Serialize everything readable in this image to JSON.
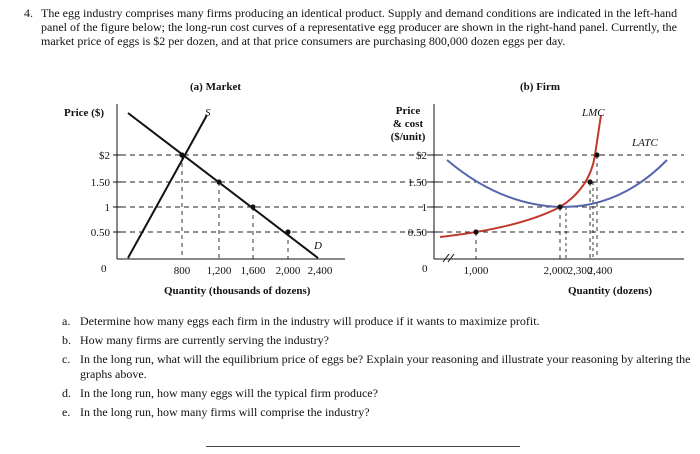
{
  "question": {
    "number": "4.",
    "text": "The egg industry comprises many firms producing an identical product. Supply and demand conditions are indicated in the left-hand panel of the figure below; the long-run cost curves of a representative egg producer are shown in the right-hand panel. Currently, the market price of eggs is $2 per dozen, and at that price consumers are purchasing 800,000 dozen eggs per day."
  },
  "chart_data": [
    {
      "type": "line",
      "title": "(a) Market",
      "ylabel": "Price ($)",
      "xlabel": "Quantity (thousands of dozens)",
      "x_ticks": [
        "800",
        "1,200",
        "1,600",
        "2,000",
        "2,400"
      ],
      "y_ticks": [
        "$2",
        "1.50",
        "1",
        "0.50"
      ],
      "origin": "0",
      "series": [
        {
          "name": "S",
          "points": [
            [
              800,
              2.0
            ],
            [
              1200,
              1.5
            ],
            [
              1600,
              1.0
            ],
            [
              2000,
              0.5
            ]
          ]
        },
        {
          "name": "D",
          "points": [
            [
              800,
              2.0
            ],
            [
              1200,
              1.5
            ],
            [
              1600,
              1.0
            ],
            [
              2000,
              0.5
            ],
            [
              2400,
              0.0
            ]
          ]
        }
      ],
      "ylim": [
        0,
        2.8
      ],
      "xlim": [
        0,
        2600
      ]
    },
    {
      "type": "line",
      "title": "(b) Firm",
      "ylabel": "Price & cost ($/unit)",
      "xlabel": "Quantity (dozens)",
      "x_ticks": [
        "1,000",
        "2,000",
        "2,300",
        "2,400"
      ],
      "y_ticks": [
        "$2",
        "1.50",
        "1",
        "0.50"
      ],
      "origin": "0",
      "series": [
        {
          "name": "LMC",
          "points": [
            [
              1000,
              0.5
            ],
            [
              2000,
              1.0
            ],
            [
              2300,
              1.5
            ],
            [
              2400,
              2.0
            ]
          ]
        },
        {
          "name": "LATC",
          "points": [
            [
              2000,
              1.0
            ],
            [
              2300,
              1.5
            ]
          ]
        }
      ],
      "ylim": [
        0,
        2.8
      ]
    }
  ],
  "parts": [
    {
      "label": "a.",
      "text": "Determine how many eggs each firm in the industry will produce if it wants to maximize profit."
    },
    {
      "label": "b.",
      "text": "How many firms are currently serving the industry?"
    },
    {
      "label": "c.",
      "text": "In the long run, what will the equilibrium price of eggs be? Explain your reasoning and illustrate your reasoning by altering the graphs above."
    },
    {
      "label": "d.",
      "text": "In the long run, how many eggs will the typical firm produce?"
    },
    {
      "label": "e.",
      "text": "In the long run, how many firms will comprise the industry?"
    }
  ]
}
